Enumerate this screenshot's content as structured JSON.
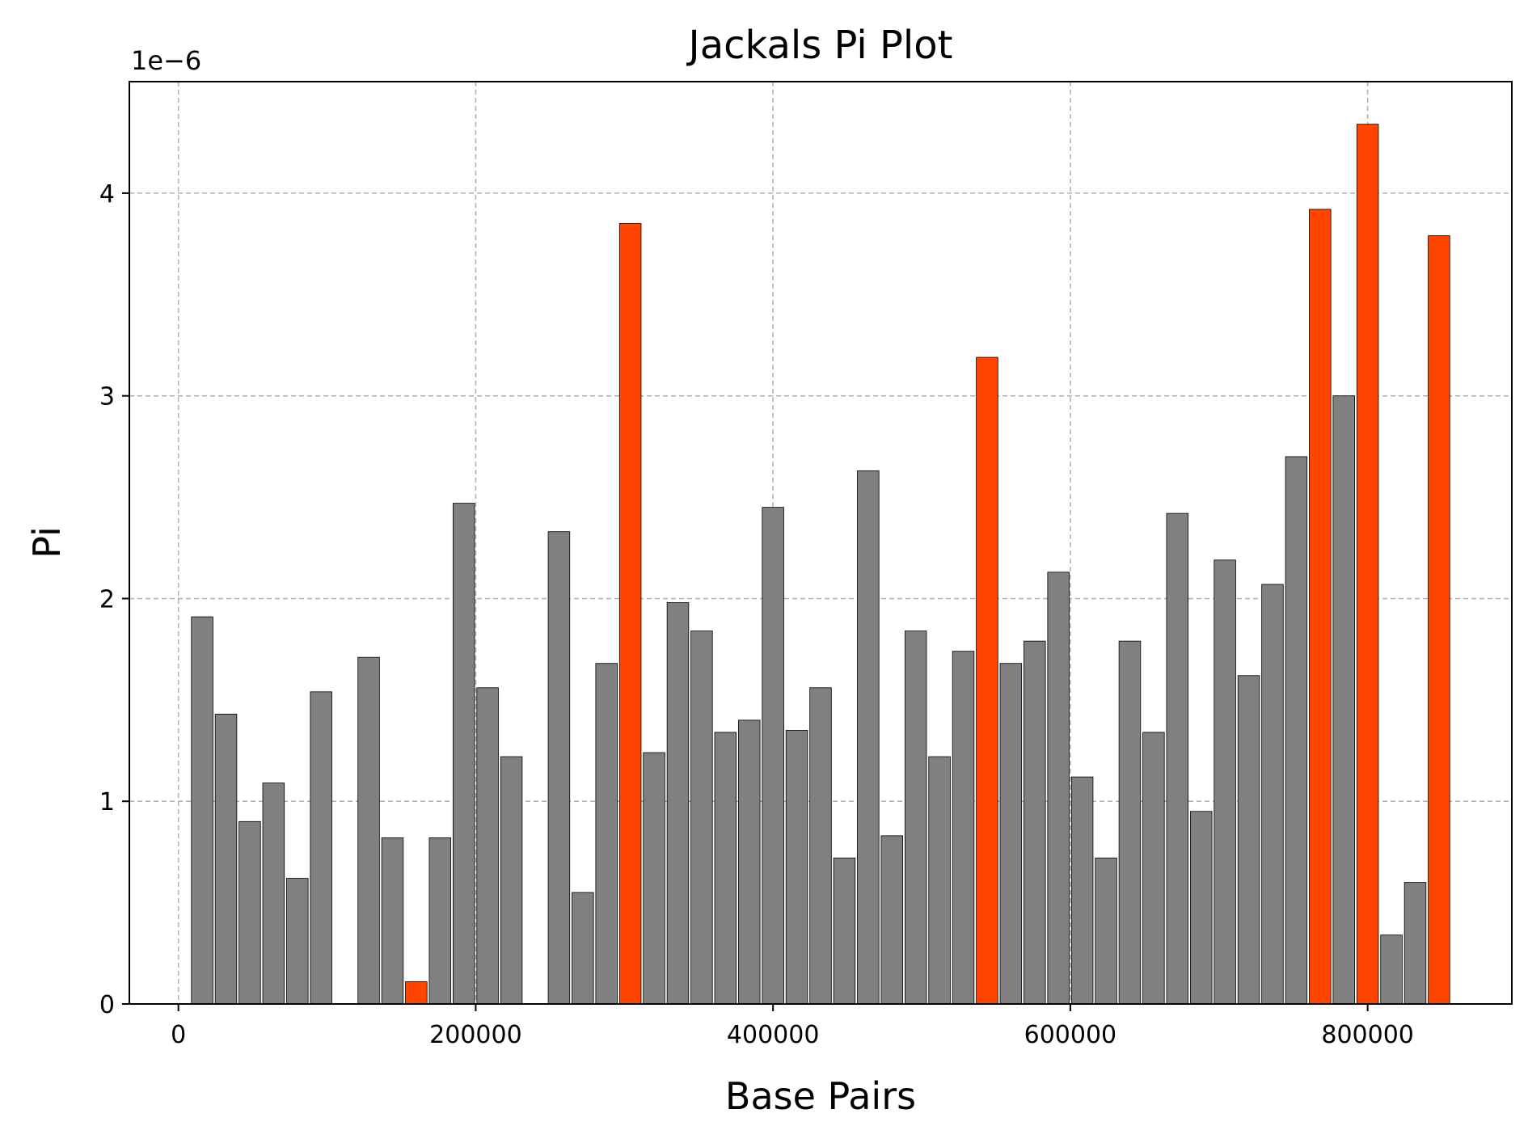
{
  "chart_data": {
    "type": "bar",
    "title": "Jackals Pi Plot",
    "xlabel": "Base Pairs",
    "ylabel": "Pi",
    "y_offset_text": "1e−6",
    "y_scale": 1e-06,
    "xlim": [
      -33000,
      897000
    ],
    "ylim": [
      0,
      4.55
    ],
    "x_ticks": [
      0,
      200000,
      400000,
      600000,
      800000
    ],
    "x_tick_labels": [
      "0",
      "200000",
      "400000",
      "600000",
      "800000"
    ],
    "y_ticks": [
      0,
      1,
      2,
      3,
      4
    ],
    "y_tick_labels": [
      "0",
      "1",
      "2",
      "3",
      "4"
    ],
    "grid": true,
    "bar_width": 14500,
    "colors": {
      "normal": "#808080",
      "highlight": "#ff4500"
    },
    "x": [
      16000,
      32000,
      48000,
      64000,
      80000,
      96000,
      128000,
      144000,
      160000,
      176000,
      192000,
      208000,
      224000,
      256000,
      272000,
      288000,
      304000,
      320000,
      336000,
      352000,
      368000,
      384000,
      400000,
      416000,
      432000,
      448000,
      464000,
      480000,
      496000,
      512000,
      528000,
      544000,
      560000,
      576000,
      592000,
      608000,
      624000,
      640000,
      656000,
      672000,
      688000,
      704000,
      720000,
      736000,
      752000,
      768000,
      784000,
      800000,
      816000,
      832000,
      848000
    ],
    "values": [
      1.91,
      1.43,
      0.9,
      1.09,
      0.62,
      1.54,
      1.71,
      0.82,
      0.11,
      0.82,
      2.47,
      1.56,
      1.22,
      2.33,
      0.55,
      1.68,
      3.85,
      1.24,
      1.98,
      1.84,
      1.34,
      1.4,
      2.45,
      1.35,
      1.56,
      0.72,
      2.63,
      0.83,
      1.84,
      1.22,
      1.74,
      3.19,
      1.68,
      1.79,
      2.13,
      1.12,
      0.72,
      1.79,
      1.34,
      2.42,
      0.95,
      2.19,
      1.62,
      2.07,
      2.7,
      3.92,
      3.0,
      4.34,
      0.34,
      0.6,
      3.79
    ],
    "highlight": [
      false,
      false,
      false,
      false,
      false,
      false,
      false,
      false,
      true,
      false,
      false,
      false,
      false,
      false,
      false,
      false,
      true,
      false,
      false,
      false,
      false,
      false,
      false,
      false,
      false,
      false,
      false,
      false,
      false,
      false,
      false,
      true,
      false,
      false,
      false,
      false,
      false,
      false,
      false,
      false,
      false,
      false,
      false,
      false,
      false,
      true,
      false,
      true,
      false,
      false,
      true
    ]
  }
}
